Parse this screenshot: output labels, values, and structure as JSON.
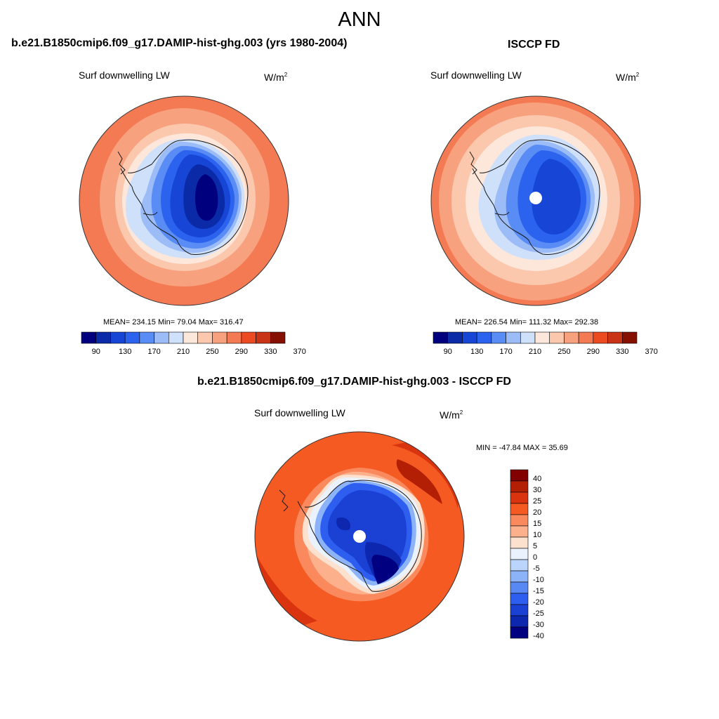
{
  "figure": {
    "title": "ANN"
  },
  "panels": [
    {
      "title": "b.e21.B1850cmip6.f09_g17.DAMIP-hist-ghg.003 (yrs 1980-2004)",
      "field": "Surf downwelling LW",
      "units": "W/m",
      "units_exp": "2",
      "stats": "MEAN= 234.15  Min=  79.04  Max= 316.47",
      "colorbar_labels": [
        "90",
        "130",
        "170",
        "210",
        "250",
        "290",
        "330",
        "370"
      ]
    },
    {
      "title": "ISCCP FD",
      "field": "Surf downwelling LW",
      "units": "W/m",
      "units_exp": "2",
      "stats": "MEAN= 226.54  Min= 111.32  Max= 292.38",
      "colorbar_labels": [
        "90",
        "130",
        "170",
        "210",
        "250",
        "290",
        "330",
        "370"
      ]
    },
    {
      "title": "b.e21.B1850cmip6.f09_g17.DAMIP-hist-ghg.003 - ISCCP FD",
      "field": "Surf downwelling LW",
      "units": "W/m",
      "units_exp": "2",
      "stats": "MIN = -47.84 MAX =  35.69",
      "colorbar_labels": [
        "40",
        "30",
        "25",
        "20",
        "15",
        "10",
        "5",
        "0",
        "-5",
        "-10",
        "-15",
        "-20",
        "-25",
        "-30",
        "-40"
      ]
    }
  ],
  "palette": {
    "absolute": [
      "#00007f",
      "#0a2aa8",
      "#1746d6",
      "#2b63ee",
      "#5a8cf5",
      "#9cbcf7",
      "#cfe0fb",
      "#fde7da",
      "#fbc7ad",
      "#f8a17e",
      "#f47a53",
      "#ec4a21",
      "#c83415",
      "#861000"
    ],
    "difference": [
      "#820000",
      "#b31f05",
      "#d9340f",
      "#f45a22",
      "#fa8a5d",
      "#fcb08c",
      "#fde1cf",
      "#eaf2fe",
      "#bad4fb",
      "#8cb2f8",
      "#5788f3",
      "#2d5ef0",
      "#1a40d4",
      "#0d27ae",
      "#000080"
    ]
  }
}
